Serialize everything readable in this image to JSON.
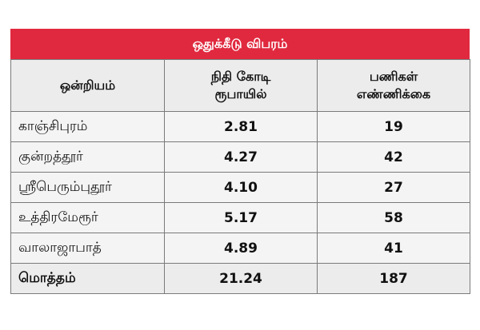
{
  "table": {
    "title": "ஒதுக்கீடு விபரம்",
    "headers": {
      "col1": "ஒன்றியம்",
      "col2_line1": "நிதி கோடி",
      "col2_line2": "ரூபாயில்",
      "col3_line1": "பணிகள்",
      "col3_line2": "எண்ணிக்கை"
    },
    "rows": [
      {
        "name": "காஞ்சிபுரம்",
        "amount": "2.81",
        "count": "19"
      },
      {
        "name": "குன்றத்தூர்",
        "amount": "4.27",
        "count": "42"
      },
      {
        "name": "ஸ்ரீபெரும்புதூர்",
        "amount": "4.10",
        "count": "27"
      },
      {
        "name": "உத்திரமேரூர்",
        "amount": "5.17",
        "count": "58"
      },
      {
        "name": "வாலாஜாபாத்",
        "amount": "4.89",
        "count": "41"
      }
    ],
    "total": {
      "name": "மொத்தம்",
      "amount": "21.24",
      "count": "187"
    },
    "accent_color": "#e0293f"
  }
}
